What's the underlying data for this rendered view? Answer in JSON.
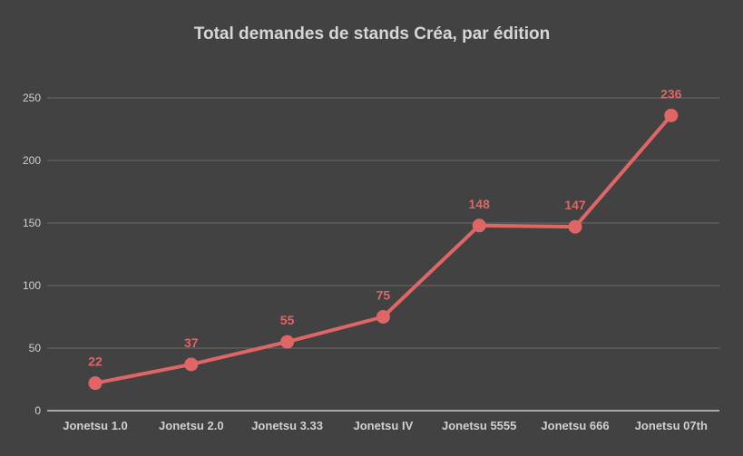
{
  "chart_data": {
    "type": "line",
    "title": "Total demandes de stands Créa, par édition",
    "xlabel": "",
    "ylabel": "",
    "categories": [
      "Jonetsu 1.0",
      "Jonetsu 2.0",
      "Jonetsu 3.33",
      "Jonetsu IV",
      "Jonetsu 5555",
      "Jonetsu 666",
      "Jonetsu 07th"
    ],
    "series": [
      {
        "values": [
          22,
          37,
          55,
          75,
          148,
          147,
          236
        ]
      }
    ],
    "ylim": [
      0,
      250
    ],
    "yticks": [
      0,
      50,
      100,
      150,
      200,
      250
    ],
    "grid": true,
    "data_labels": true,
    "colors": {
      "background": "#424242",
      "series": "#e06666",
      "grid": "#6a6a6a",
      "text": "#d0d0d0"
    }
  }
}
